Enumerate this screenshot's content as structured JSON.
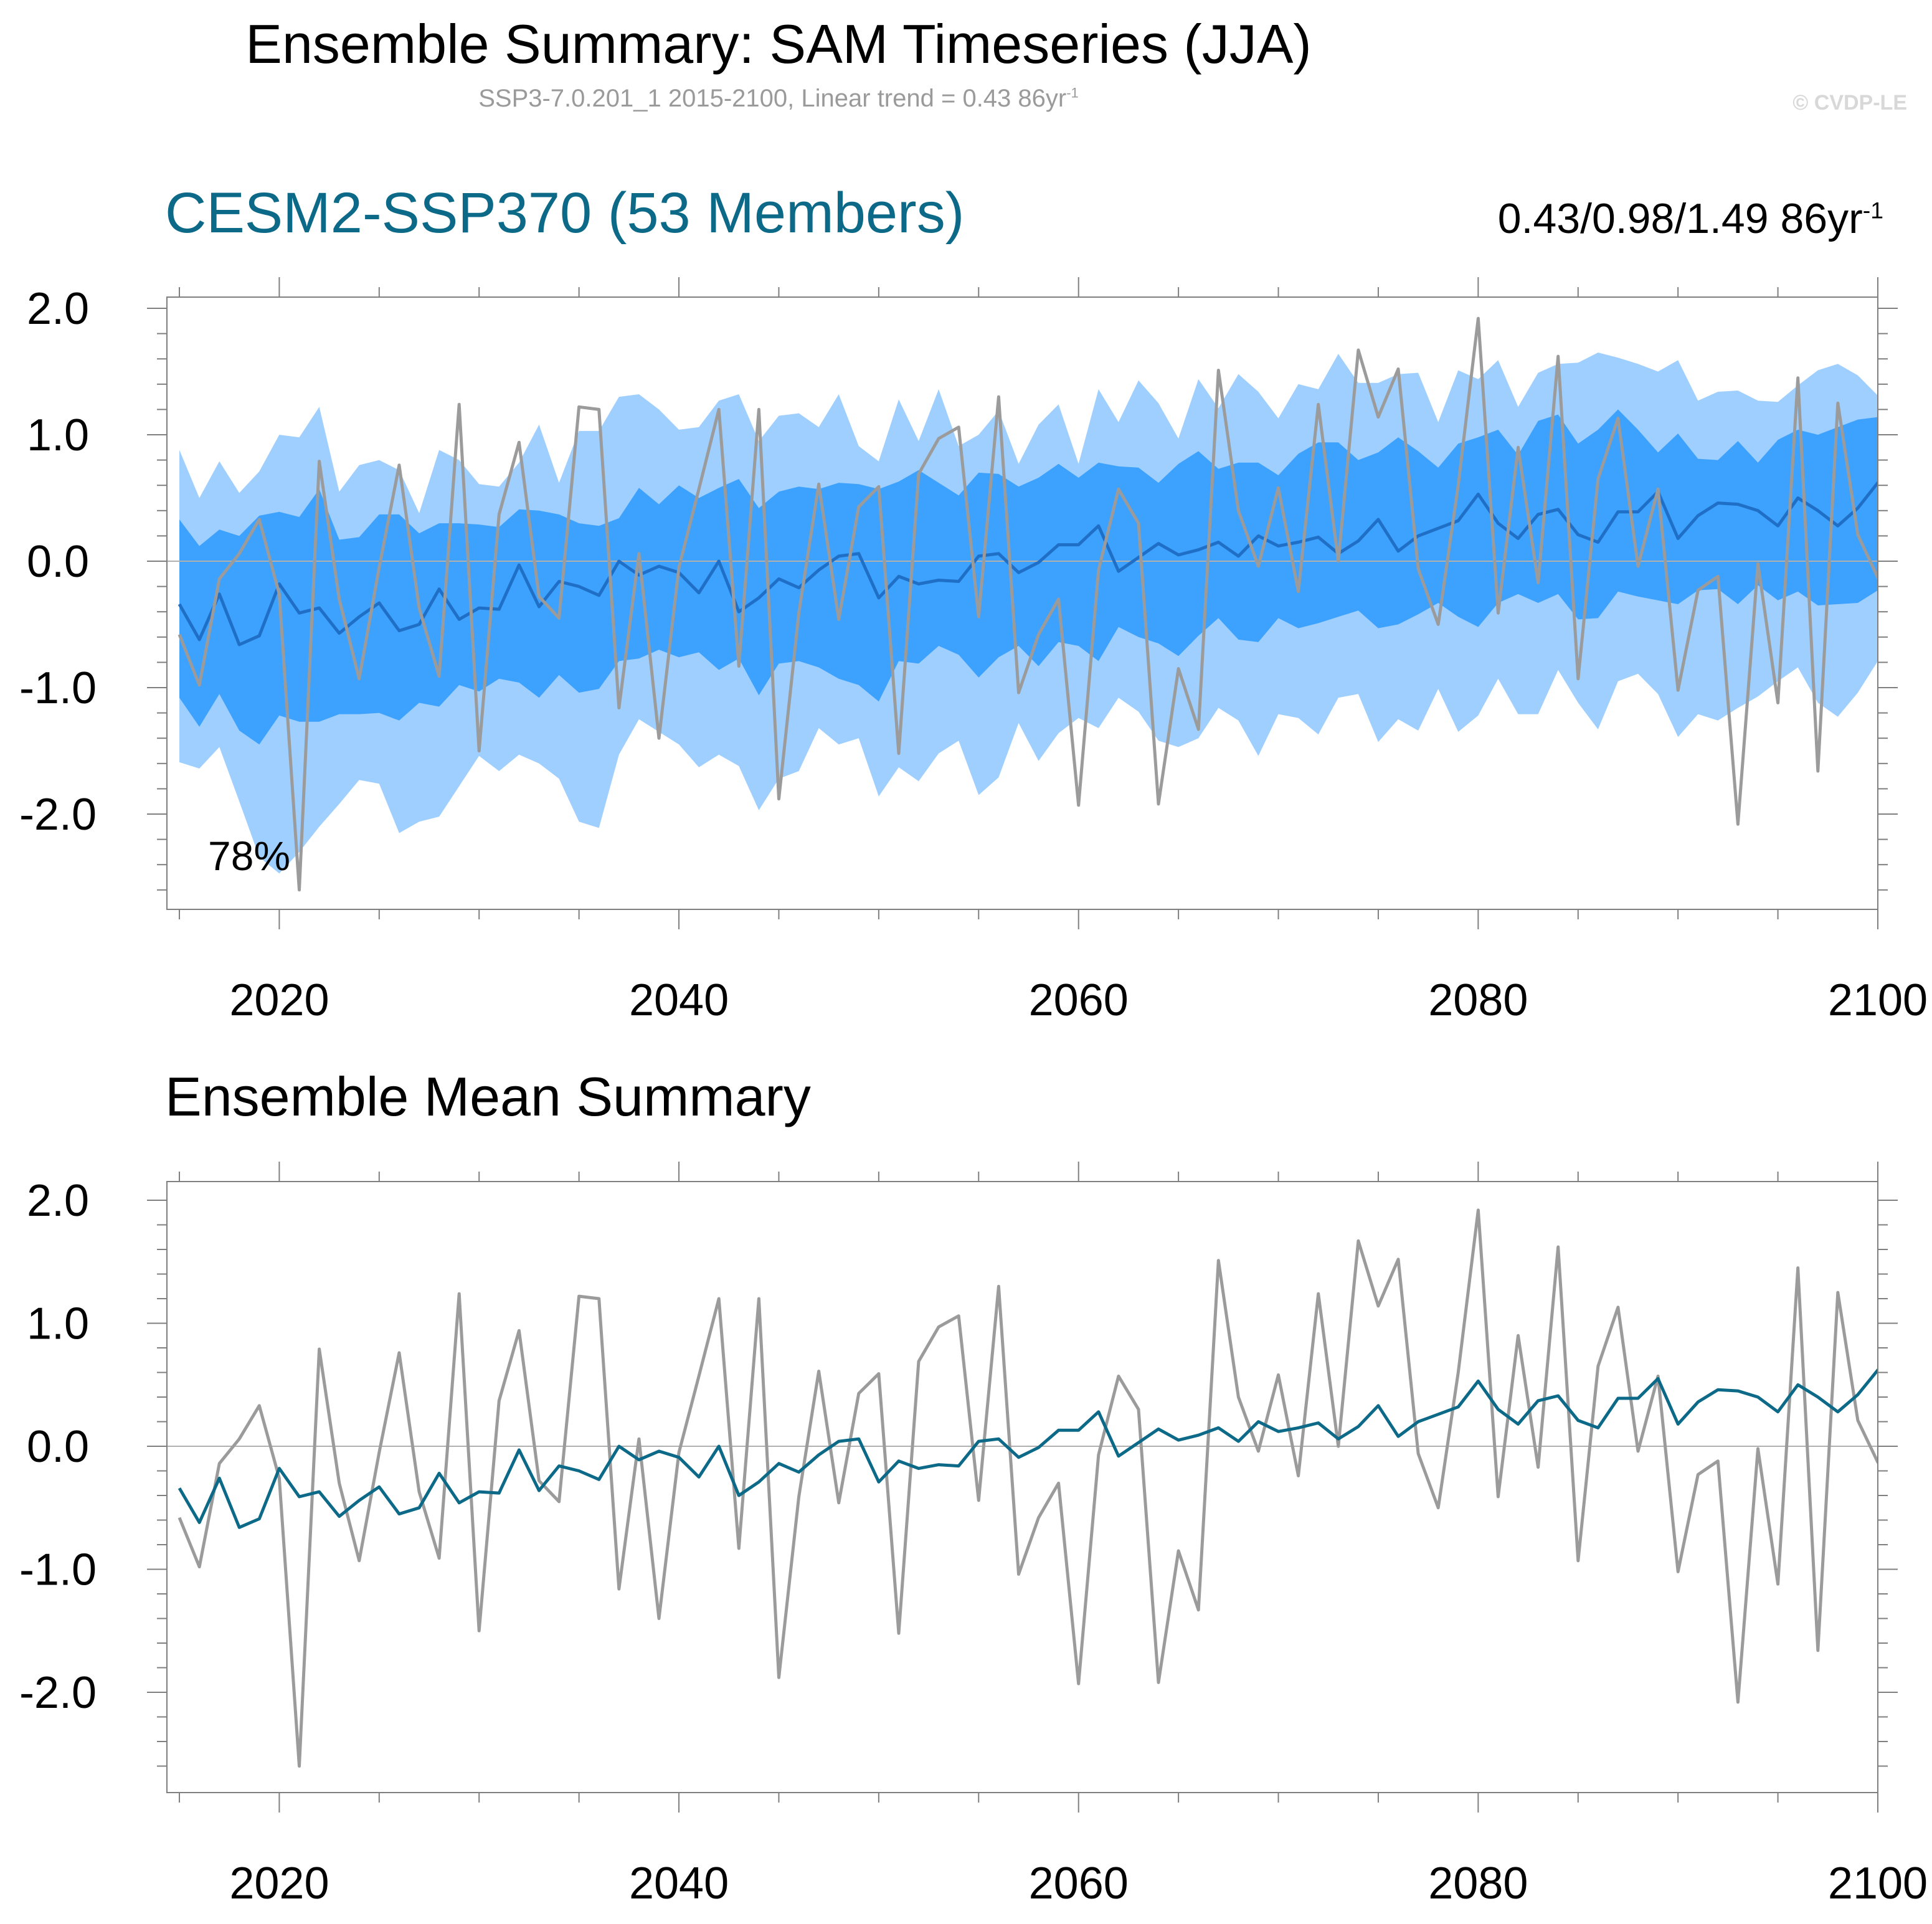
{
  "header": {
    "title": "Ensemble Summary: SAM Timeseries (JJA)",
    "subtitle_main": "SSP3-7.0.201_1 2015-2100, Linear trend = 0.43 86yr",
    "subtitle_sup": "-1",
    "credit": "© CVDP-LE"
  },
  "panel1": {
    "title": "CESM2-SSP370 (53 Members)",
    "trend_main": "0.43/0.98/1.49 86yr",
    "trend_sup": "-1",
    "percent_label": "78%"
  },
  "panel2": {
    "title": "Ensemble Mean Summary"
  },
  "colors": {
    "outer_band": "#9fcfff",
    "inner_band": "#3da1fe",
    "ens_mean_panel1": "#1f6fc6",
    "ens_mean_panel2": "#0c6a88",
    "observations": "#9b9b9b",
    "zero_line": "#b0b0b0"
  },
  "chart_data": [
    {
      "type": "area",
      "panel": "top",
      "title": "CESM2-SSP370 (53 Members)",
      "x_start": 2015,
      "x_end": 2100,
      "xlim": [
        2014,
        2100
      ],
      "ylim": [
        -2.75,
        2.0
      ],
      "x_ticks": [
        "2020",
        "2040",
        "2060",
        "2080",
        "2100"
      ],
      "y_ticks": [
        "2.0",
        "1.0",
        "0.0",
        "-1.0",
        "-2.0"
      ],
      "series": [
        {
          "name": "",
          "role": "ensemble-min-max",
          "upper": [
            0.88,
            0.5,
            0.79,
            0.54,
            0.71,
            1.0,
            0.98,
            1.22,
            0.55,
            0.76,
            0.8,
            0.72,
            0.38,
            0.88,
            0.8,
            0.61,
            0.59,
            0.78,
            1.08,
            0.62,
            1.03,
            1.03,
            1.3,
            1.32,
            1.2,
            1.04,
            1.06,
            1.27,
            1.32,
            0.95,
            1.15,
            1.17,
            1.06,
            1.32,
            0.91,
            0.79,
            1.28,
            0.95,
            1.36,
            0.91,
            1.0,
            1.19,
            0.77,
            1.08,
            1.24,
            0.77,
            1.36,
            1.1,
            1.43,
            1.25,
            0.97,
            1.44,
            1.21,
            1.48,
            1.34,
            1.13,
            1.4,
            1.36,
            1.64,
            1.41,
            1.41,
            1.48,
            1.49,
            1.1,
            1.51,
            1.44,
            1.59,
            1.22,
            1.49,
            1.56,
            1.57,
            1.65,
            1.61,
            1.56,
            1.5,
            1.59,
            1.27,
            1.34,
            1.35,
            1.27,
            1.26,
            1.39,
            1.51,
            1.56,
            1.47,
            1.31,
            1.63
          ],
          "lower": [
            -1.59,
            -1.64,
            -1.47,
            -1.9,
            -2.34,
            -2.47,
            -2.3,
            -2.1,
            -1.92,
            -1.73,
            -1.76,
            -2.15,
            -2.06,
            -2.02,
            -1.78,
            -1.54,
            -1.66,
            -1.53,
            -1.6,
            -1.72,
            -2.06,
            -2.11,
            -1.53,
            -1.25,
            -1.35,
            -1.45,
            -1.63,
            -1.53,
            -1.62,
            -1.97,
            -1.72,
            -1.66,
            -1.32,
            -1.45,
            -1.4,
            -1.86,
            -1.63,
            -1.74,
            -1.52,
            -1.42,
            -1.85,
            -1.71,
            -1.28,
            -1.58,
            -1.36,
            -1.24,
            -1.32,
            -1.08,
            -1.19,
            -1.42,
            -1.47,
            -1.4,
            -1.16,
            -1.26,
            -1.54,
            -1.21,
            -1.24,
            -1.37,
            -1.08,
            -1.05,
            -1.43,
            -1.25,
            -1.34,
            -1.01,
            -1.35,
            -1.22,
            -0.93,
            -1.21,
            -1.21,
            -0.86,
            -1.12,
            -1.33,
            -0.95,
            -0.89,
            -1.05,
            -1.39,
            -1.21,
            -1.26,
            -1.16,
            -1.07,
            -0.95,
            -0.84,
            -1.12,
            -1.23,
            -1.04,
            -0.79,
            -0.55
          ]
        },
        {
          "name": "",
          "role": "ensemble-inner-range",
          "upper": [
            0.33,
            0.12,
            0.25,
            0.2,
            0.36,
            0.39,
            0.35,
            0.57,
            0.17,
            0.19,
            0.37,
            0.37,
            0.22,
            0.3,
            0.3,
            0.29,
            0.27,
            0.41,
            0.4,
            0.37,
            0.3,
            0.28,
            0.34,
            0.58,
            0.45,
            0.6,
            0.5,
            0.58,
            0.65,
            0.42,
            0.55,
            0.59,
            0.57,
            0.62,
            0.61,
            0.57,
            0.63,
            0.72,
            0.62,
            0.52,
            0.7,
            0.69,
            0.59,
            0.66,
            0.77,
            0.66,
            0.78,
            0.75,
            0.74,
            0.62,
            0.77,
            0.87,
            0.73,
            0.78,
            0.78,
            0.68,
            0.85,
            0.94,
            0.94,
            0.8,
            0.86,
            0.98,
            0.87,
            0.74,
            0.93,
            0.98,
            1.04,
            0.84,
            1.11,
            1.16,
            0.93,
            1.04,
            1.2,
            1.04,
            0.86,
            1.01,
            0.81,
            0.8,
            0.95,
            0.78,
            0.96,
            1.04,
            1.0,
            1.06,
            1.12,
            1.14,
            1.18
          ],
          "lower": [
            -1.08,
            -1.31,
            -1.05,
            -1.34,
            -1.45,
            -1.22,
            -1.27,
            -1.27,
            -1.21,
            -1.21,
            -1.2,
            -1.26,
            -1.12,
            -1.15,
            -0.98,
            -1.03,
            -0.93,
            -0.96,
            -1.08,
            -0.9,
            -1.04,
            -1.01,
            -0.79,
            -0.77,
            -0.7,
            -0.76,
            -0.72,
            -0.86,
            -0.77,
            -1.06,
            -0.81,
            -0.79,
            -0.84,
            -0.93,
            -0.98,
            -1.11,
            -0.79,
            -0.81,
            -0.67,
            -0.74,
            -0.92,
            -0.76,
            -0.67,
            -0.83,
            -0.64,
            -0.67,
            -0.79,
            -0.52,
            -0.6,
            -0.65,
            -0.75,
            -0.59,
            -0.45,
            -0.62,
            -0.64,
            -0.45,
            -0.53,
            -0.49,
            -0.44,
            -0.39,
            -0.53,
            -0.5,
            -0.42,
            -0.33,
            -0.44,
            -0.52,
            -0.33,
            -0.26,
            -0.33,
            -0.26,
            -0.46,
            -0.45,
            -0.24,
            -0.28,
            -0.31,
            -0.34,
            -0.23,
            -0.22,
            -0.34,
            -0.19,
            -0.31,
            -0.24,
            -0.35,
            -0.34,
            -0.33,
            -0.23,
            -0.34
          ]
        },
        {
          "name": "",
          "role": "ensemble-mean",
          "values": [
            -0.34,
            -0.62,
            -0.26,
            -0.66,
            -0.59,
            -0.18,
            -0.41,
            -0.37,
            -0.57,
            -0.44,
            -0.33,
            -0.55,
            -0.5,
            -0.22,
            -0.46,
            -0.37,
            -0.38,
            -0.03,
            -0.36,
            -0.16,
            -0.2,
            -0.27,
            0.0,
            -0.11,
            -0.04,
            -0.09,
            -0.25,
            0.0,
            -0.4,
            -0.29,
            -0.14,
            -0.21,
            -0.07,
            0.04,
            0.06,
            -0.29,
            -0.12,
            -0.18,
            -0.15,
            -0.16,
            0.04,
            0.06,
            -0.09,
            -0.01,
            0.13,
            0.13,
            0.28,
            -0.08,
            0.03,
            0.14,
            0.05,
            0.09,
            0.15,
            0.04,
            0.2,
            0.12,
            0.15,
            0.19,
            0.06,
            0.16,
            0.33,
            0.08,
            0.2,
            0.26,
            0.32,
            0.53,
            0.3,
            0.18,
            0.37,
            0.41,
            0.21,
            0.15,
            0.39,
            0.39,
            0.55,
            0.18,
            0.36,
            0.46,
            0.45,
            0.4,
            0.28,
            0.5,
            0.4,
            0.28,
            0.42,
            0.62,
            0.62
          ]
        },
        {
          "name": "",
          "role": "observations",
          "values": [
            -0.58,
            -0.98,
            -0.14,
            0.06,
            0.33,
            -0.26,
            -2.6,
            0.79,
            -0.3,
            -0.93,
            -0.05,
            0.76,
            -0.37,
            -0.91,
            1.24,
            -1.5,
            0.37,
            0.94,
            -0.28,
            -0.45,
            1.22,
            1.2,
            -1.16,
            0.06,
            -1.4,
            -0.05,
            0.57,
            1.2,
            -0.83,
            1.2,
            -1.88,
            -0.41,
            0.61,
            -0.46,
            0.43,
            0.59,
            -1.52,
            0.69,
            0.97,
            1.06,
            -0.44,
            1.3,
            -1.04,
            -0.58,
            -0.3,
            -1.93,
            -0.07,
            0.57,
            0.3,
            -1.92,
            -0.85,
            -1.33,
            1.51,
            0.4,
            -0.04,
            0.58,
            -0.24,
            1.24,
            0.0,
            1.67,
            1.14,
            1.52,
            -0.06,
            -0.5,
            0.6,
            1.92,
            -0.41,
            0.9,
            -0.17,
            1.62,
            -0.93,
            0.65,
            1.13,
            -0.04,
            0.57,
            -1.02,
            -0.23,
            -0.12,
            -2.08,
            -0.02,
            -1.12,
            1.45,
            -1.66,
            1.25,
            0.21,
            -0.13,
            -0.13
          ]
        }
      ]
    },
    {
      "type": "line",
      "panel": "bottom",
      "title": "Ensemble Mean Summary",
      "x_start": 2015,
      "x_end": 2100,
      "xlim": [
        2014,
        2100
      ],
      "ylim": [
        -2.75,
        2.0
      ],
      "x_ticks": [
        "2020",
        "2040",
        "2060",
        "2080",
        "2100"
      ],
      "y_ticks": [
        "2.0",
        "1.0",
        "0.0",
        "-1.0",
        "-2.0"
      ],
      "series_ref": "uses ensemble-mean and observations values from top panel"
    }
  ]
}
